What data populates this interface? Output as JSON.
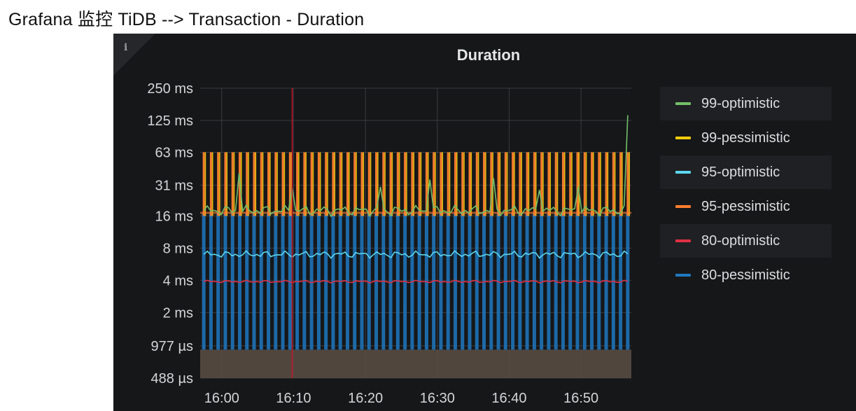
{
  "page": {
    "title": "Grafana 监控 TiDB --> Transaction - Duration"
  },
  "panel": {
    "title": "Duration",
    "info_icon": "info-icon"
  },
  "colors": {
    "99-optimistic": "#73bf69",
    "99-pessimistic": "#f2cc0c",
    "95-optimistic": "#5cd6ee",
    "95-pessimistic": "#ff7f2f",
    "80-optimistic": "#e02f44",
    "80-pessimistic": "#1f78c1",
    "annotation": "#c4162a",
    "background": "#161719"
  },
  "legend": [
    {
      "label": "99-optimistic"
    },
    {
      "label": "99-pessimistic"
    },
    {
      "label": "95-optimistic"
    },
    {
      "label": "95-pessimistic"
    },
    {
      "label": "80-optimistic"
    },
    {
      "label": "80-pessimistic"
    }
  ],
  "chart_data": {
    "type": "line",
    "title": "Duration",
    "y_scale": "log2",
    "y_ticks_ms": [
      0.488,
      0.977,
      2,
      4,
      8,
      16,
      31,
      63,
      125,
      250
    ],
    "y_tick_labels": [
      "488 µs",
      "977 µs",
      "2 ms",
      "4 ms",
      "8 ms",
      "16 ms",
      "31 ms",
      "63 ms",
      "125 ms",
      "250 ms"
    ],
    "x_tick_labels": [
      "16:00",
      "16:10",
      "16:20",
      "16:30",
      "16:40",
      "16:50"
    ],
    "x_range": [
      "15:57",
      "16:57"
    ],
    "ylim_ms": [
      0.488,
      250
    ],
    "grid": true,
    "legend_position": "right",
    "annotation_time": "16:10",
    "series": [
      {
        "name": "99-optimistic",
        "typical_ms": 18,
        "peaks_ms": [
          40,
          30,
          30,
          35,
          36,
          28,
          30,
          140
        ]
      },
      {
        "name": "99-pessimistic",
        "low_ms": 16,
        "high_ms": 63,
        "oscillating": true
      },
      {
        "name": "95-optimistic",
        "typical_ms": 7
      },
      {
        "name": "95-pessimistic",
        "low_ms": 16,
        "high_ms": 63,
        "oscillating": true
      },
      {
        "name": "80-optimistic",
        "typical_ms": 3.9
      },
      {
        "name": "80-pessimistic",
        "low_ms": 0.9,
        "high_ms": 17,
        "oscillating": true
      }
    ]
  }
}
